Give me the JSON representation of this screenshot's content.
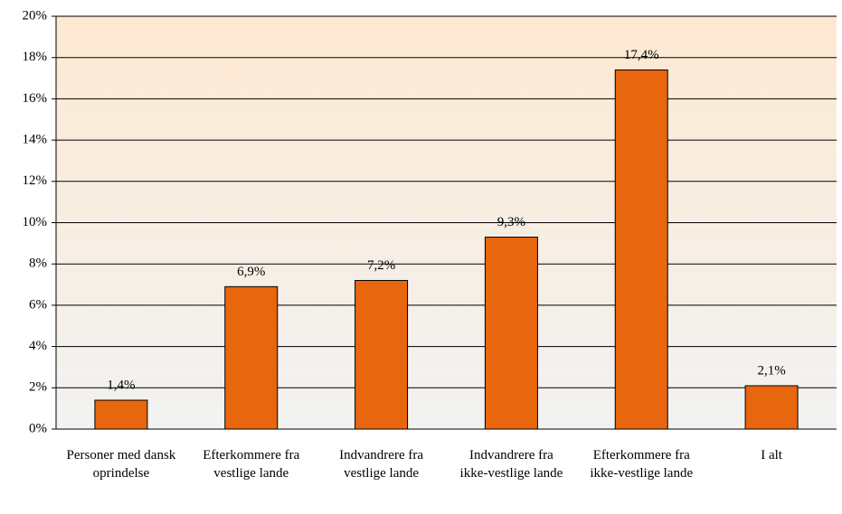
{
  "chart_data": {
    "type": "bar",
    "categories": [
      "Personer med dansk oprindelse",
      "Efterkommere fra vestlige lande",
      "Indvandrere fra vestlige lande",
      "Indvandrere fra ikke-vestlige lande",
      "Efterkommere fra ikke-vestlige lande",
      "I alt"
    ],
    "values": [
      1.4,
      6.9,
      7.2,
      9.3,
      17.4,
      2.1
    ],
    "value_labels": [
      "1,4%",
      "6,9%",
      "7,2%",
      "9,3%",
      "17,4%",
      "2,1%"
    ],
    "color": "#e8660e",
    "ylim": [
      0,
      20
    ],
    "yticks": [
      {
        "value": 0,
        "label": "0%"
      },
      {
        "value": 2,
        "label": "2%"
      },
      {
        "value": 4,
        "label": "4%"
      },
      {
        "value": 6,
        "label": "6%"
      },
      {
        "value": 8,
        "label": "8%"
      },
      {
        "value": 10,
        "label": "10%"
      },
      {
        "value": 12,
        "label": "12%"
      },
      {
        "value": 14,
        "label": "14%"
      },
      {
        "value": 16,
        "label": "16%"
      },
      {
        "value": 18,
        "label": "18%"
      },
      {
        "value": 20,
        "label": "20%"
      }
    ],
    "grid": true
  }
}
